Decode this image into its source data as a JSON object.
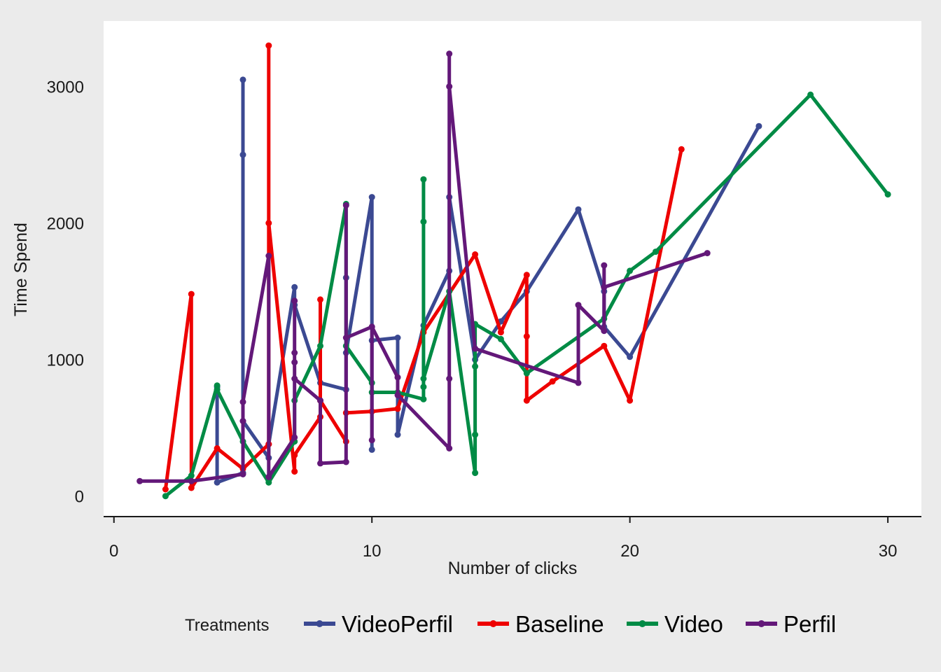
{
  "chart_data": {
    "type": "line",
    "title": "",
    "xlabel": "Number of clicks",
    "ylabel": "Time Spend",
    "xlim": [
      -0.4,
      31.3
    ],
    "ylim": [
      -150,
      3480
    ],
    "x_ticks": [
      0,
      10,
      20,
      30
    ],
    "y_ticks": [
      0,
      1000,
      2000,
      3000
    ],
    "x_tick_labels": [
      "0",
      "10",
      "20",
      "30"
    ],
    "y_tick_labels": [
      "0",
      "1000",
      "2000",
      "3000"
    ],
    "grid": false,
    "legend_position": "bottom",
    "legend_title": "Treatments",
    "background": "#ebebeb",
    "panel_background": "#ffffff",
    "series": [
      {
        "name": "VideoPerfil",
        "color": "#3b4992",
        "points": [
          [
            4,
            800
          ],
          [
            4,
            100
          ],
          [
            5,
            170
          ],
          [
            5,
            3050
          ],
          [
            5,
            2500
          ],
          [
            5,
            550
          ],
          [
            6,
            280
          ],
          [
            6,
            380
          ],
          [
            7,
            1530
          ],
          [
            7,
            1400
          ],
          [
            8,
            830
          ],
          [
            9,
            780
          ],
          [
            9,
            1600
          ],
          [
            9,
            1050
          ],
          [
            10,
            2190
          ],
          [
            10,
            340
          ],
          [
            10,
            1140
          ],
          [
            11,
            1160
          ],
          [
            11,
            450
          ],
          [
            12,
            1250
          ],
          [
            13,
            1650
          ],
          [
            13,
            2190
          ],
          [
            14,
            1000
          ],
          [
            15,
            1280
          ],
          [
            16,
            1500
          ],
          [
            18,
            2100
          ],
          [
            19,
            1500
          ],
          [
            19,
            1240
          ],
          [
            20,
            1020
          ],
          [
            25,
            2710
          ]
        ]
      },
      {
        "name": "Baseline",
        "color": "#ee0000",
        "points": [
          [
            2,
            50
          ],
          [
            3,
            1480
          ],
          [
            3,
            60
          ],
          [
            4,
            350
          ],
          [
            5,
            200
          ],
          [
            6,
            380
          ],
          [
            6,
            3300
          ],
          [
            6,
            2000
          ],
          [
            7,
            180
          ],
          [
            7,
            300
          ],
          [
            8,
            580
          ],
          [
            8,
            1440
          ],
          [
            8,
            700
          ],
          [
            9,
            400
          ],
          [
            9,
            610
          ],
          [
            10,
            620
          ],
          [
            11,
            640
          ],
          [
            12,
            1200
          ],
          [
            14,
            1770
          ],
          [
            15,
            1200
          ],
          [
            16,
            1620
          ],
          [
            16,
            1170
          ],
          [
            16,
            700
          ],
          [
            17,
            840
          ],
          [
            19,
            1100
          ],
          [
            20,
            700
          ],
          [
            22,
            2540
          ]
        ]
      },
      {
        "name": "Video",
        "color": "#008b45",
        "points": [
          [
            2,
            0
          ],
          [
            3,
            150
          ],
          [
            4,
            810
          ],
          [
            4,
            780
          ],
          [
            5,
            400
          ],
          [
            6,
            100
          ],
          [
            7,
            400
          ],
          [
            7,
            700
          ],
          [
            8,
            1100
          ],
          [
            9,
            2140
          ],
          [
            9,
            1100
          ],
          [
            10,
            830
          ],
          [
            10,
            760
          ],
          [
            11,
            760
          ],
          [
            12,
            710
          ],
          [
            12,
            800
          ],
          [
            12,
            2320
          ],
          [
            12,
            2010
          ],
          [
            12,
            860
          ],
          [
            13,
            1500
          ],
          [
            14,
            170
          ],
          [
            14,
            450
          ],
          [
            14,
            950
          ],
          [
            14,
            1260
          ],
          [
            15,
            1150
          ],
          [
            16,
            900
          ],
          [
            19,
            1300
          ],
          [
            20,
            1650
          ],
          [
            21,
            1790
          ],
          [
            27,
            2940
          ],
          [
            30,
            2210
          ]
        ]
      },
      {
        "name": "Perfil",
        "color": "#631879",
        "points": [
          [
            1,
            110
          ],
          [
            3,
            110
          ],
          [
            5,
            160
          ],
          [
            5,
            550
          ],
          [
            5,
            690
          ],
          [
            6,
            1760
          ],
          [
            6,
            140
          ],
          [
            7,
            430
          ],
          [
            7,
            1430
          ],
          [
            7,
            1050
          ],
          [
            7,
            980
          ],
          [
            7,
            860
          ],
          [
            8,
            700
          ],
          [
            8,
            240
          ],
          [
            9,
            250
          ],
          [
            9,
            2130
          ],
          [
            9,
            1160
          ],
          [
            10,
            1240
          ],
          [
            10,
            410
          ],
          [
            10,
            1240
          ],
          [
            11,
            870
          ],
          [
            11,
            740
          ],
          [
            13,
            350
          ],
          [
            13,
            860
          ],
          [
            13,
            3240
          ],
          [
            13,
            3000
          ],
          [
            14,
            1080
          ],
          [
            18,
            830
          ],
          [
            18,
            1400
          ],
          [
            19,
            1210
          ],
          [
            19,
            1690
          ],
          [
            19,
            1530
          ],
          [
            23,
            1780
          ]
        ]
      }
    ]
  }
}
